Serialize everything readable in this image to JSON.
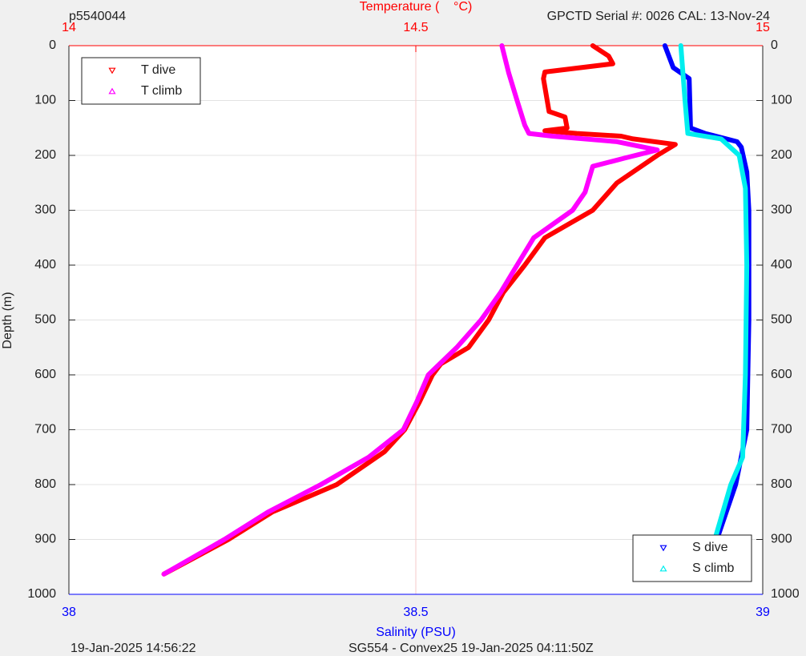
{
  "chart_data": {
    "type": "profile",
    "title": "p5540044",
    "subtitle": "GPCTD Serial #: 0026 CAL: 13-Nov-24",
    "annotations": [
      "19-Jan-2025 14:56:22",
      "SG554 - Convex25 19-Jan-2025 04:11:50Z"
    ],
    "x_label": "Salinity (PSU)",
    "x2_label": "Temperature (    °C)",
    "y_label": "Depth (m)",
    "xlim": [
      38,
      39
    ],
    "xticks": [
      38,
      38.5,
      39
    ],
    "x_color": "#0000ff",
    "x2lim": [
      14,
      15
    ],
    "x2ticks": [
      14,
      14.5,
      15
    ],
    "x2_color": "#ff0000",
    "ylim": [
      0,
      1000
    ],
    "yticks": [
      0,
      100,
      200,
      300,
      400,
      500,
      600,
      700,
      800,
      900,
      1000
    ],
    "y_inverted": true,
    "grid": true,
    "series": [
      {
        "name": "T dive",
        "color": "#ff0000",
        "axis": "x2",
        "marker": "down",
        "legend": "upper left",
        "x": [
          14.755,
          14.778,
          14.784,
          14.686,
          14.684,
          14.692,
          14.715,
          14.718,
          14.686,
          14.732,
          14.796,
          14.813,
          14.874,
          14.848,
          14.79,
          14.755,
          14.686,
          14.657,
          14.626,
          14.605,
          14.576,
          14.536,
          14.524,
          14.505,
          14.484,
          14.455,
          14.386,
          14.293,
          14.23,
          14.137
        ],
        "values": [
          0,
          19,
          33,
          48,
          60,
          120,
          130,
          150,
          155,
          160,
          165,
          170,
          180,
          200,
          250,
          300,
          350,
          400,
          450,
          500,
          550,
          580,
          600,
          650,
          700,
          740,
          800,
          850,
          900,
          963
        ]
      },
      {
        "name": "T climb",
        "color": "#ff00ff",
        "axis": "x2",
        "marker": "up",
        "legend": "upper left",
        "x": [
          14.624,
          14.634,
          14.646,
          14.657,
          14.663,
          14.697,
          14.79,
          14.848,
          14.801,
          14.755,
          14.744,
          14.726,
          14.67,
          14.646,
          14.622,
          14.594,
          14.559,
          14.518,
          14.501,
          14.482,
          14.432,
          14.363,
          14.287,
          14.224,
          14.137
        ],
        "values": [
          0,
          50,
          100,
          145,
          160,
          165,
          175,
          190,
          205,
          220,
          267,
          300,
          350,
          400,
          450,
          500,
          550,
          600,
          650,
          700,
          750,
          800,
          850,
          900,
          963
        ]
      },
      {
        "name": "S dive",
        "color": "#0000ff",
        "axis": "x",
        "marker": "down",
        "legend": "lower right",
        "x": [
          38.859,
          38.871,
          38.894,
          38.896,
          38.917,
          38.963,
          38.969,
          38.977,
          38.98,
          38.98,
          38.977,
          38.961,
          38.934,
          38.919
        ],
        "values": [
          0,
          40,
          60,
          150,
          160,
          175,
          185,
          230,
          300,
          500,
          700,
          800,
          900,
          963
        ]
      },
      {
        "name": "S climb",
        "color": "#00eeee",
        "axis": "x",
        "marker": "up",
        "legend": "lower right",
        "x": [
          38.882,
          38.885,
          38.888,
          38.892,
          38.94,
          38.966,
          38.975,
          38.977,
          38.975,
          38.971,
          38.954,
          38.931,
          38.917
        ],
        "values": [
          0,
          50,
          100,
          160,
          170,
          200,
          260,
          400,
          600,
          750,
          800,
          900,
          963
        ]
      }
    ]
  }
}
